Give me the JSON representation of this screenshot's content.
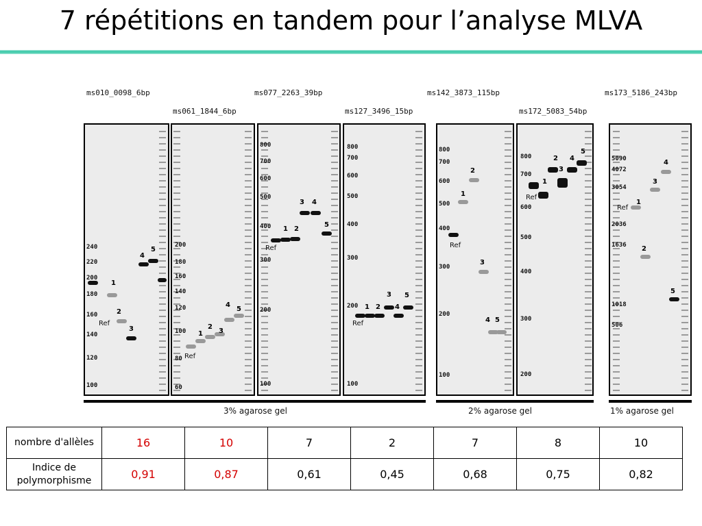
{
  "title": "7 répétitions en tandem pour l’analyse MLVA",
  "figure": {
    "gels": [
      {
        "name": "ms010_0098_6bp",
        "ladder": [
          "240",
          "220",
          "200",
          "180",
          "160",
          "140",
          "120",
          "100"
        ],
        "alleles": [
          "1",
          "2",
          "3",
          "4",
          "5"
        ],
        "ref_label": "Ref"
      },
      {
        "name": "ms061_1844_6bp",
        "ladder": [
          "200",
          "180",
          "160",
          "140",
          "120",
          "100",
          "80",
          "60"
        ],
        "alleles": [
          "1",
          "2",
          "3",
          "4",
          "5"
        ],
        "ref_label": "Ref"
      },
      {
        "name": "ms077_2263_39bp",
        "ladder": [
          "800",
          "700",
          "600",
          "500",
          "400",
          "300",
          "200",
          "100"
        ],
        "alleles": [
          "1",
          "2",
          "3",
          "4",
          "5"
        ],
        "ref_label": "Ref"
      },
      {
        "name": "ms127_3496_15bp",
        "ladder": [
          "800",
          "700",
          "600",
          "500",
          "400",
          "300",
          "200",
          "100"
        ],
        "alleles": [
          "1",
          "2",
          "3",
          "4",
          "5"
        ],
        "ref_label": "Ref"
      },
      {
        "name": "ms142_3873_115bp",
        "ladder": [
          "800",
          "700",
          "600",
          "500",
          "400",
          "300",
          "200",
          "100"
        ],
        "alleles": [
          "1",
          "2",
          "3",
          "4",
          "5"
        ],
        "ref_label": "Ref"
      },
      {
        "name": "ms172_5083_54bp",
        "ladder": [
          "800",
          "700",
          "600",
          "500",
          "400",
          "300",
          "200"
        ],
        "alleles": [
          "1",
          "2",
          "3",
          "4",
          "5"
        ],
        "ref_label": "Ref"
      },
      {
        "name": "ms173_5186_243bp",
        "ladder": [
          "5090",
          "4072",
          "3054",
          "2036",
          "1636",
          "1018",
          "506"
        ],
        "alleles": [
          "1",
          "2",
          "3",
          "4",
          "5"
        ],
        "ref_label": "Ref"
      }
    ],
    "concentrations": [
      "3% agarose gel",
      "2% agarose gel",
      "1% agarose gel"
    ]
  },
  "table": {
    "rows": [
      {
        "label": "nombre d'allèles",
        "values": [
          "16",
          "10",
          "7",
          "2",
          "7",
          "8",
          "10"
        ],
        "highlight": [
          true,
          true,
          false,
          false,
          false,
          false,
          false
        ]
      },
      {
        "label": "Indice de polymorphisme",
        "values": [
          "0,91",
          "0,87",
          "0,61",
          "0,45",
          "0,68",
          "0,75",
          "0,82"
        ],
        "highlight": [
          true,
          true,
          false,
          false,
          false,
          false,
          false
        ]
      }
    ],
    "highlight_color": "#d40000"
  },
  "colors": {
    "accent_rule": "#2cc6a2"
  }
}
